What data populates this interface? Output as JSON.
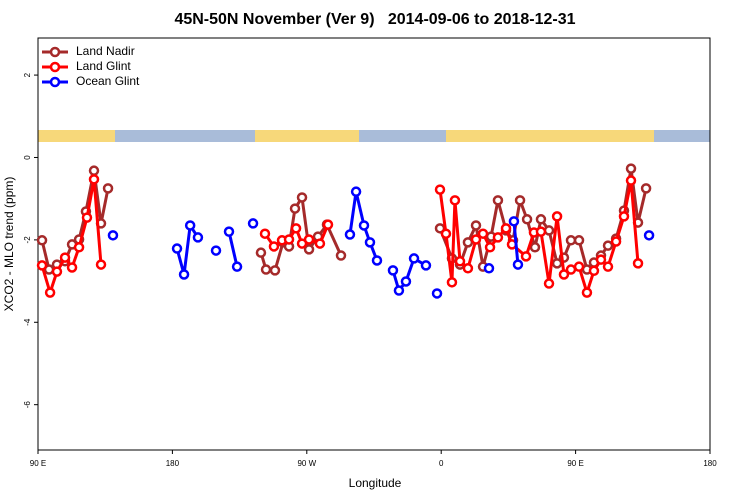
{
  "chart_data": {
    "type": "line",
    "title": "45N-50N November (Ver 9)   2014-09-06 to 2018-12-31",
    "x_label": "Longitude",
    "y_label": "XCO2 - MLO trend (ppm)",
    "xlim": [
      90,
      540
    ],
    "xticks": [
      {
        "value": 90,
        "label": "90 E"
      },
      180,
      {
        "value": 270,
        "label": "90 W"
      },
      {
        "value": 360,
        "label": "0"
      },
      {
        "value": 450,
        "label": "90 E"
      },
      {
        "value": 540,
        "label": "180"
      }
    ],
    "ylim": [
      -7.1,
      2.9
    ],
    "yticks": [
      -6,
      -4,
      -2,
      0,
      2
    ],
    "legend": "top-left",
    "series": [
      {
        "name": "Land Nadir",
        "color": "#a52a2a",
        "x": [
          92.7,
          97.4,
          102.7,
          108.1,
          112.8,
          117.5,
          122.1,
          127.5,
          132.2,
          136.9,
          null,
          239.3,
          242.7,
          248.7,
          254.1,
          258.1,
          262.1,
          266.8,
          271.5,
          277.5,
          283.5,
          292.9,
          null,
          359.2,
          367.2,
          372.6,
          377.9,
          383.3,
          388.0,
          393.4,
          398.0,
          403.4,
          408.1,
          412.8,
          417.5,
          422.8,
          426.8,
          432.2,
          437.6,
          442.2,
          446.9,
          452.3,
          457.6,
          462.3,
          467.0,
          471.7,
          477.1,
          482.4,
          487.1,
          491.8,
          497.2
        ],
        "values": [
          -2.01,
          -2.72,
          -2.6,
          -2.52,
          -2.11,
          -1.99,
          -1.31,
          -0.32,
          -1.6,
          -0.75,
          null,
          -2.31,
          -2.72,
          -2.74,
          -2.06,
          -2.16,
          -1.24,
          -0.97,
          -2.23,
          -1.92,
          -1.63,
          -2.38,
          null,
          -1.72,
          -2.45,
          -2.6,
          -2.06,
          -1.65,
          -2.65,
          -1.92,
          -1.04,
          -1.77,
          -2.01,
          -1.04,
          -1.5,
          -2.18,
          -1.5,
          -1.77,
          -2.57,
          -2.43,
          -2.01,
          -2.01,
          -2.72,
          -2.55,
          -2.38,
          -2.14,
          -1.97,
          -1.29,
          -0.27,
          -1.58,
          -0.75
        ]
      },
      {
        "name": "Land Glint",
        "color": "#ff0000",
        "x": [
          92.7,
          98.1,
          102.7,
          108.1,
          112.8,
          117.5,
          122.8,
          127.5,
          132.2,
          null,
          242.0,
          248.0,
          253.4,
          258.1,
          262.8,
          266.8,
          271.5,
          278.8,
          284.2,
          null,
          359.2,
          363.2,
          367.2,
          369.2,
          372.6,
          377.9,
          383.3,
          388.0,
          392.7,
          398.0,
          403.4,
          407.4,
          416.8,
          422.1,
          426.8,
          432.2,
          437.6,
          442.2,
          446.9,
          452.3,
          457.6,
          462.3,
          467.0,
          471.7,
          477.1,
          482.4,
          487.1,
          491.8
        ],
        "values": [
          -2.62,
          -3.28,
          -2.77,
          -2.43,
          -2.67,
          -2.18,
          -1.46,
          -0.53,
          -2.6,
          null,
          -1.85,
          -2.16,
          -2.01,
          -1.99,
          -1.72,
          -2.09,
          -1.99,
          -2.09,
          -1.63,
          null,
          -0.78,
          -1.85,
          -3.03,
          -1.04,
          -2.52,
          -2.69,
          -1.99,
          -1.85,
          -2.18,
          -1.94,
          -1.72,
          -2.11,
          -2.4,
          -1.82,
          -1.8,
          -3.06,
          -1.43,
          -2.84,
          -2.72,
          -2.65,
          -3.28,
          -2.75,
          -2.48,
          -2.65,
          -2.04,
          -1.43,
          -0.56,
          -2.57
        ]
      },
      {
        "name": "Ocean Glint",
        "color": "#0000ff",
        "x": [
          140.2,
          null,
          183.1,
          187.8,
          191.9,
          197.1,
          null,
          209.2,
          null,
          217.9,
          223.3,
          null,
          234.0,
          null,
          298.9,
          303.0,
          308.3,
          312.3,
          317.0,
          null,
          327.7,
          331.7,
          336.4,
          341.8,
          349.8,
          null,
          357.2,
          null,
          392.0,
          null,
          408.7,
          411.4,
          null,
          499.2
        ],
        "values": [
          -1.89,
          null,
          -2.21,
          -2.84,
          -1.65,
          -1.94,
          null,
          -2.26,
          null,
          -1.8,
          -2.65,
          null,
          -1.6,
          null,
          -1.87,
          -0.83,
          -1.65,
          -2.06,
          -2.5,
          null,
          -2.74,
          -3.23,
          -3.01,
          -2.45,
          -2.62,
          null,
          -3.3,
          null,
          -2.69,
          null,
          -1.55,
          -2.6,
          null,
          -1.89
        ]
      }
    ]
  }
}
